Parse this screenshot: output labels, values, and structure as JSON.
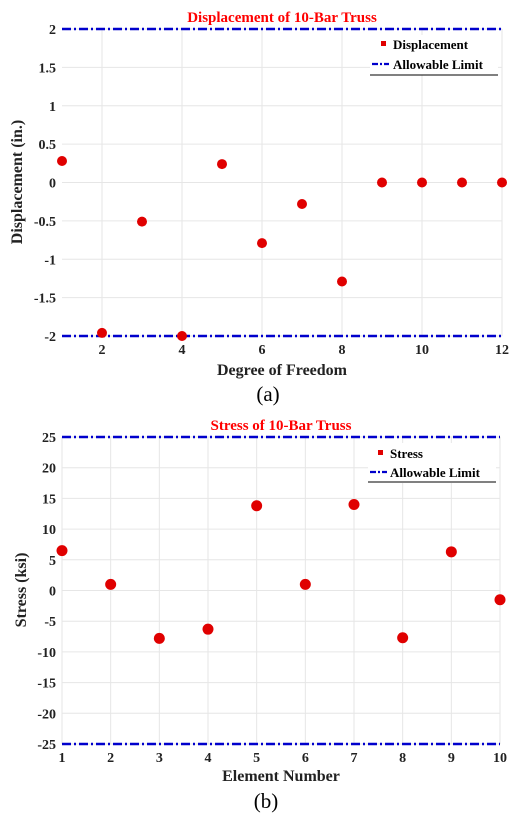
{
  "chart_data": [
    {
      "type": "scatter",
      "title": "Displacement of 10-Bar Truss",
      "xlabel": "Degree of Freedom",
      "ylabel": "Displacement (in.)",
      "caption": "(a)",
      "xlim": [
        1,
        12
      ],
      "ylim": [
        -2,
        2
      ],
      "xticks": [
        2,
        4,
        6,
        8,
        10,
        12
      ],
      "yticks": [
        2,
        1.5,
        1,
        0.5,
        0,
        -0.5,
        -1,
        -1.5,
        -2
      ],
      "grid": true,
      "legend_position": "top-right",
      "series": [
        {
          "name": "Displacement",
          "color": "#e00000",
          "x": [
            1,
            2,
            3,
            4,
            5,
            6,
            7,
            8,
            9,
            10,
            11,
            12
          ],
          "y": [
            0.28,
            -1.96,
            -0.51,
            -2.0,
            0.24,
            -0.79,
            -0.28,
            -1.29,
            0,
            0,
            0,
            0
          ]
        }
      ],
      "limits": [
        {
          "name": "Allowable Limit",
          "color": "#0000cc",
          "values": [
            2,
            -2
          ]
        }
      ]
    },
    {
      "type": "scatter",
      "title": "Stress of 10-Bar Truss",
      "xlabel": "Element Number",
      "ylabel": "Stress (ksi)",
      "caption": "(b)",
      "xlim": [
        1,
        10
      ],
      "ylim": [
        -25,
        25
      ],
      "xticks": [
        1,
        2,
        3,
        4,
        5,
        6,
        7,
        8,
        9,
        10
      ],
      "yticks": [
        25,
        20,
        15,
        10,
        5,
        0,
        -5,
        -10,
        -15,
        -20,
        -25
      ],
      "grid": true,
      "legend_position": "top-right",
      "series": [
        {
          "name": "Stress",
          "color": "#e00000",
          "x": [
            1,
            2,
            3,
            4,
            5,
            6,
            7,
            8,
            9,
            10
          ],
          "y": [
            6.5,
            1.0,
            -7.8,
            -6.3,
            13.8,
            1.0,
            14.0,
            -7.7,
            6.3,
            -1.5
          ]
        }
      ],
      "limits": [
        {
          "name": "Allowable Limit",
          "color": "#0000cc",
          "values": [
            25,
            -25
          ]
        }
      ]
    }
  ]
}
